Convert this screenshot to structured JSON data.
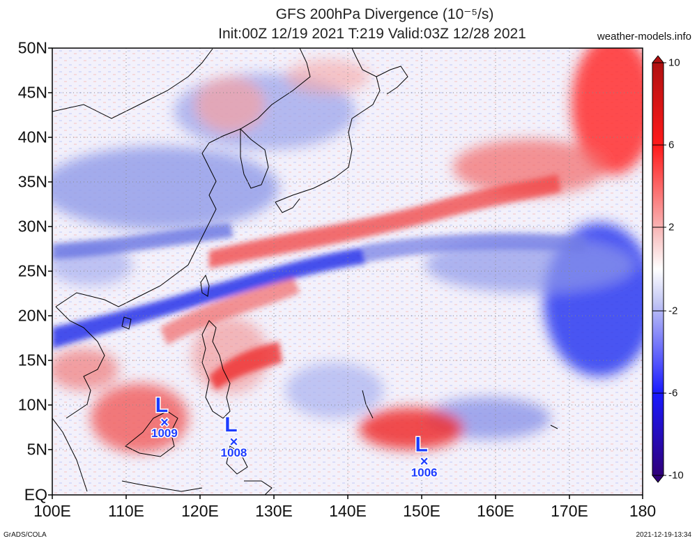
{
  "header": {
    "title_line1": "GFS 200hPa Divergence (10⁻⁵/s)",
    "title_line2": "Init:00Z 12/19 2021 T:219 Valid:03Z 12/28 2021",
    "site": "weather-models.info"
  },
  "axes": {
    "lat_labels": [
      "50N",
      "45N",
      "40N",
      "35N",
      "30N",
      "25N",
      "20N",
      "15N",
      "10N",
      "5N",
      "EQ"
    ],
    "lon_labels": [
      "100E",
      "110E",
      "120E",
      "130E",
      "140E",
      "150E",
      "160E",
      "170E",
      "180"
    ],
    "lat_range": [
      0,
      50
    ],
    "lon_range": [
      100,
      180
    ]
  },
  "colorbar": {
    "labels": [
      "10",
      "6",
      "2",
      "-2",
      "-6",
      "-10"
    ],
    "range": [
      -10,
      10
    ],
    "colors": {
      "max": "#c00000",
      "high": "#ff2a2a",
      "low_pos": "#f4a0a0",
      "zero": "#ffffff",
      "low_neg": "#a8b0f0",
      "min_neg": "#1e1eff",
      "min": "#2a0070"
    }
  },
  "lows": [
    {
      "letter": "L",
      "pressure": "1009",
      "lon": 115.2,
      "lat": 8.5
    },
    {
      "letter": "L",
      "pressure": "1008",
      "lon": 124.6,
      "lat": 6.3
    },
    {
      "letter": "L",
      "pressure": "1006",
      "lon": 150.4,
      "lat": 4.1
    }
  ],
  "footer": {
    "left": "GrADS/COLA",
    "right": "2021-12-19-13:34"
  }
}
